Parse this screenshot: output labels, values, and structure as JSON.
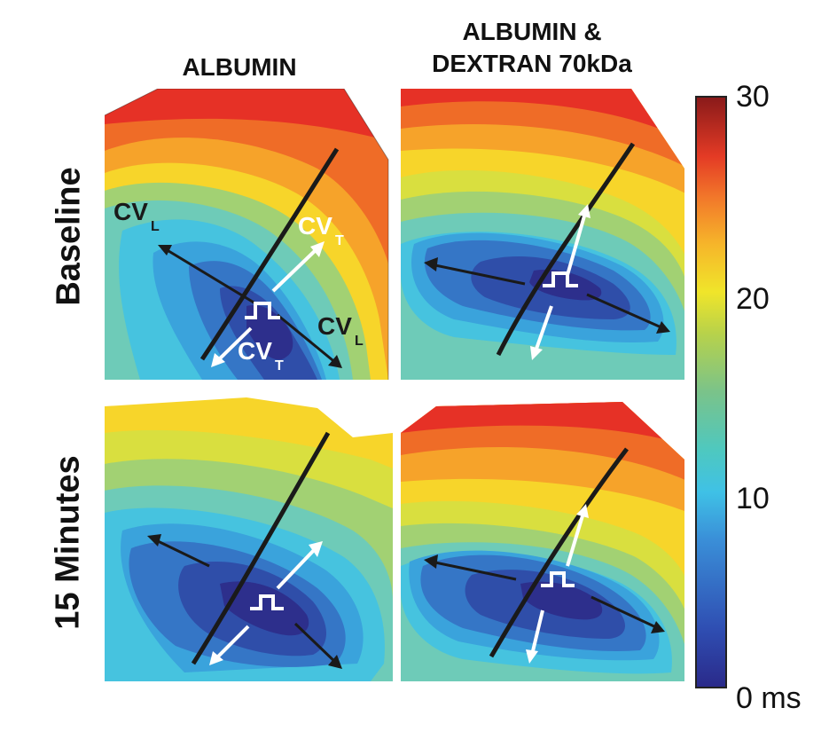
{
  "columns": [
    "ALBUMIN",
    "ALBUMIN &\nDEXTRAN 70kDa"
  ],
  "column_lines": {
    "col2_line1": "ALBUMIN &",
    "col2_line2": "DEXTRAN 70kDa"
  },
  "rows": [
    "Baseline",
    "15 Minutes"
  ],
  "annotations": {
    "cv_main": "CV",
    "sub_L": "L",
    "sub_T": "T"
  },
  "colorbar": {
    "max": "30",
    "mid_high": "20",
    "mid_low": "10",
    "min": "0 ms"
  },
  "colors": {
    "c0": "#2d2f8c",
    "c1": "#2f4ea9",
    "c2": "#3576c6",
    "c3": "#3aa3dc",
    "c4": "#46c3df",
    "c5": "#6ecbb8",
    "c6": "#a2d173",
    "c7": "#d9df3f",
    "c8": "#f7d52a",
    "c9": "#f6a32a",
    "c10": "#ef6c27",
    "c11": "#e63126",
    "stroke": "#1a1a1a",
    "white": "#ffffff"
  }
}
